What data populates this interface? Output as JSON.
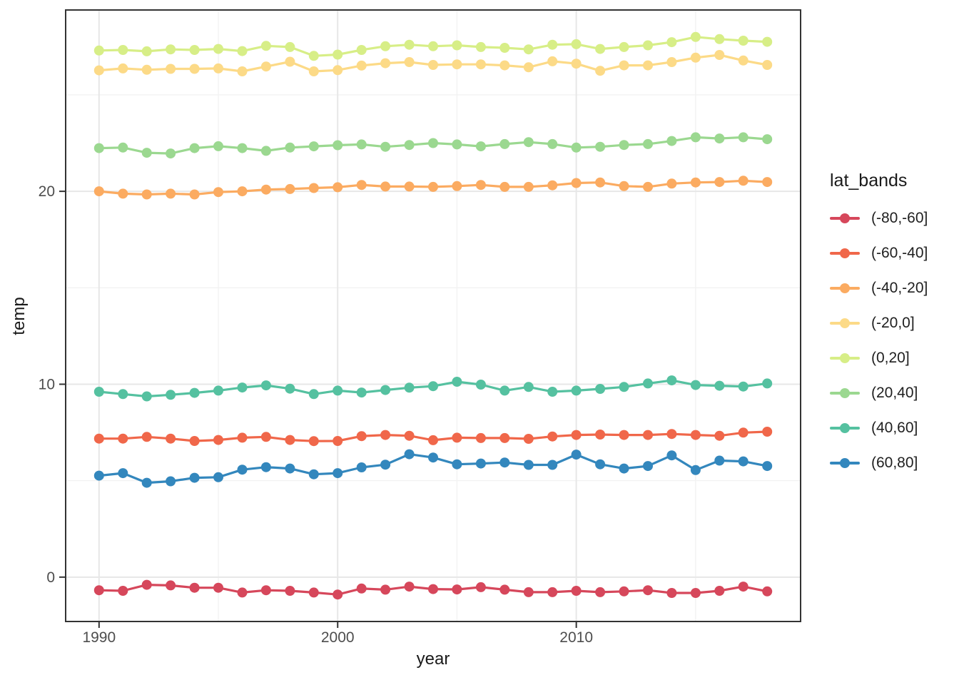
{
  "chart_data": {
    "type": "line",
    "title": "",
    "xlabel": "year",
    "ylabel": "temp",
    "legend_title": "lat_bands",
    "legend_position": "right",
    "grid": true,
    "panel_border_color": "#333333",
    "major_grid_color": "#e7e7e7",
    "minor_grid_color": "#f2f2f2",
    "tick_label_color": "#4d4d4d",
    "x_ticks": [
      1990,
      2000,
      2010
    ],
    "x_minor_ticks": [
      1995,
      2005,
      2015
    ],
    "y_ticks": [
      0,
      10,
      20
    ],
    "y_minor_ticks": [
      5,
      15,
      25
    ],
    "xlim": [
      1988.6,
      2019.4
    ],
    "ylim": [
      -2.3,
      29.4
    ],
    "x": [
      1990,
      1991,
      1992,
      1993,
      1994,
      1995,
      1996,
      1997,
      1998,
      1999,
      2000,
      2001,
      2002,
      2003,
      2004,
      2005,
      2006,
      2007,
      2008,
      2009,
      2010,
      2011,
      2012,
      2013,
      2014,
      2015,
      2016,
      2017,
      2018
    ],
    "series": [
      {
        "name": "(-80,-60]",
        "color": "#d6475b",
        "values": [
          -0.68,
          -0.71,
          -0.4,
          -0.43,
          -0.55,
          -0.55,
          -0.8,
          -0.68,
          -0.71,
          -0.8,
          -0.9,
          -0.59,
          -0.65,
          -0.49,
          -0.62,
          -0.64,
          -0.52,
          -0.65,
          -0.78,
          -0.78,
          -0.71,
          -0.78,
          -0.74,
          -0.68,
          -0.82,
          -0.82,
          -0.71,
          -0.49,
          -0.74
        ]
      },
      {
        "name": "(-60,-40]",
        "color": "#f0674a",
        "values": [
          7.18,
          7.18,
          7.27,
          7.18,
          7.06,
          7.11,
          7.23,
          7.27,
          7.11,
          7.05,
          7.06,
          7.31,
          7.37,
          7.33,
          7.1,
          7.23,
          7.21,
          7.21,
          7.17,
          7.29,
          7.37,
          7.39,
          7.37,
          7.37,
          7.42,
          7.37,
          7.33,
          7.49,
          7.54
        ]
      },
      {
        "name": "(-40,-20]",
        "color": "#fbab61",
        "values": [
          20.0,
          19.88,
          19.84,
          19.88,
          19.84,
          19.96,
          20.0,
          20.09,
          20.12,
          20.17,
          20.21,
          20.33,
          20.25,
          20.25,
          20.23,
          20.27,
          20.33,
          20.23,
          20.23,
          20.31,
          20.43,
          20.46,
          20.27,
          20.23,
          20.4,
          20.46,
          20.48,
          20.55,
          20.48
        ]
      },
      {
        "name": "(-20,0]",
        "color": "#fcda87",
        "values": [
          26.27,
          26.37,
          26.3,
          26.35,
          26.35,
          26.37,
          26.22,
          26.47,
          26.72,
          26.22,
          26.28,
          26.52,
          26.64,
          26.7,
          26.55,
          26.58,
          26.58,
          26.53,
          26.43,
          26.74,
          26.62,
          26.25,
          26.53,
          26.53,
          26.7,
          26.93,
          27.07,
          26.78,
          26.55
        ]
      },
      {
        "name": "(0,20]",
        "color": "#d7ee87",
        "values": [
          27.3,
          27.33,
          27.26,
          27.36,
          27.33,
          27.38,
          27.27,
          27.54,
          27.48,
          27.02,
          27.09,
          27.33,
          27.52,
          27.6,
          27.52,
          27.57,
          27.48,
          27.44,
          27.36,
          27.6,
          27.63,
          27.38,
          27.48,
          27.57,
          27.73,
          28.0,
          27.89,
          27.81,
          27.75
        ]
      },
      {
        "name": "(20,40]",
        "color": "#9bd890",
        "values": [
          22.24,
          22.27,
          22.0,
          21.96,
          22.24,
          22.34,
          22.24,
          22.1,
          22.27,
          22.33,
          22.39,
          22.43,
          22.31,
          22.4,
          22.5,
          22.43,
          22.33,
          22.45,
          22.55,
          22.45,
          22.27,
          22.31,
          22.4,
          22.45,
          22.61,
          22.8,
          22.74,
          22.8,
          22.7
        ]
      },
      {
        "name": "(40,60]",
        "color": "#55c1a0",
        "values": [
          9.61,
          9.49,
          9.37,
          9.45,
          9.55,
          9.67,
          9.83,
          9.94,
          9.77,
          9.49,
          9.67,
          9.57,
          9.7,
          9.82,
          9.9,
          10.13,
          9.98,
          9.67,
          9.86,
          9.61,
          9.67,
          9.76,
          9.86,
          10.04,
          10.2,
          9.96,
          9.92,
          9.88,
          10.04
        ]
      },
      {
        "name": "(60,80]",
        "color": "#3387bd",
        "values": [
          5.26,
          5.39,
          4.89,
          4.97,
          5.15,
          5.18,
          5.57,
          5.7,
          5.63,
          5.33,
          5.39,
          5.69,
          5.83,
          6.37,
          6.2,
          5.85,
          5.89,
          5.94,
          5.82,
          5.82,
          6.35,
          5.85,
          5.63,
          5.76,
          6.31,
          5.55,
          6.04,
          6.0,
          5.76
        ]
      }
    ]
  }
}
